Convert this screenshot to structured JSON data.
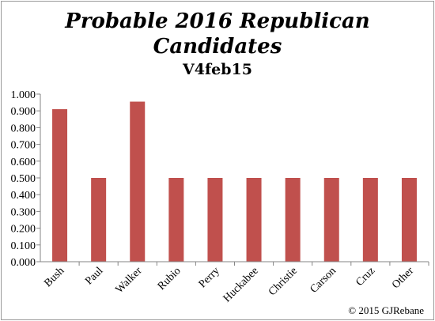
{
  "chart_data": {
    "type": "bar",
    "title_line1": "Probable 2016 Republican",
    "title_line2": "Candidates",
    "subtitle": "V4feb15",
    "categories": [
      "Bush",
      "Paul",
      "Walker",
      "Rubio",
      "Perry",
      "Huckabee",
      "Christie",
      "Carson",
      "Cruz",
      "Other"
    ],
    "values": [
      0.91,
      0.5,
      0.955,
      0.5,
      0.5,
      0.5,
      0.5,
      0.5,
      0.5,
      0.5
    ],
    "ylim": [
      0,
      1
    ],
    "yticks": [
      "0.000",
      "0.100",
      "0.200",
      "0.300",
      "0.400",
      "0.500",
      "0.600",
      "0.700",
      "0.800",
      "0.900",
      "1.000"
    ],
    "grid": false,
    "legend": "none",
    "bar_color": "#c0504d",
    "axis_color": "#868686",
    "copyright": "© 2015  GJRebane"
  }
}
